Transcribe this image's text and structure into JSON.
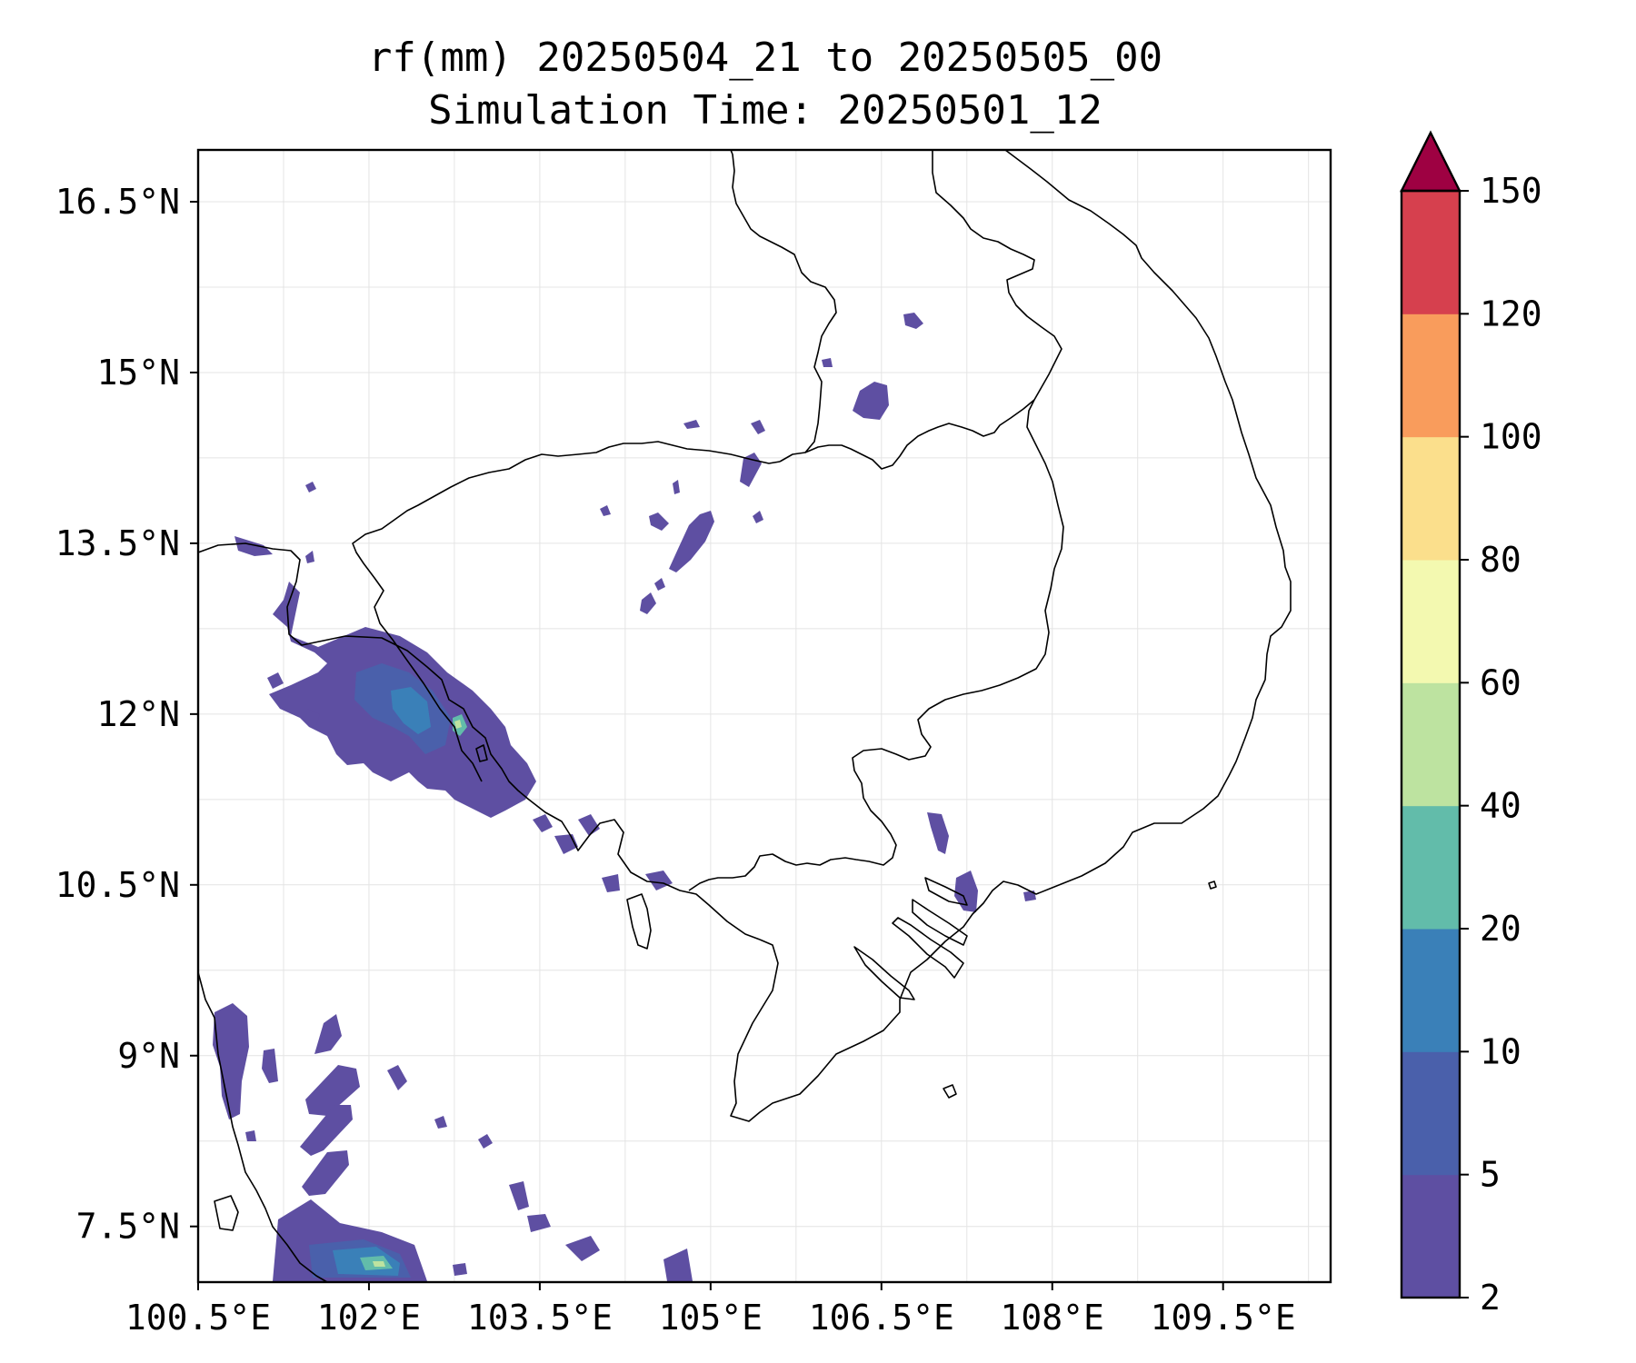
{
  "title": {
    "line1": "rf(mm) 20250504_21 to 20250505_00",
    "line2": "Simulation Time: 20250501_12"
  },
  "axes": {
    "x_ticks": [
      {
        "value": 100.5,
        "label": "100.5°E"
      },
      {
        "value": 102.0,
        "label": "102°E"
      },
      {
        "value": 103.5,
        "label": "103.5°E"
      },
      {
        "value": 105.0,
        "label": "105°E"
      },
      {
        "value": 106.5,
        "label": "106.5°E"
      },
      {
        "value": 108.0,
        "label": "108°E"
      },
      {
        "value": 109.5,
        "label": "109.5°E"
      }
    ],
    "y_ticks": [
      {
        "value": 16.5,
        "label": "16.5°N"
      },
      {
        "value": 15.0,
        "label": "15°N"
      },
      {
        "value": 13.5,
        "label": "13.5°N"
      },
      {
        "value": 12.0,
        "label": "12°N"
      },
      {
        "value": 10.5,
        "label": "10.5°N"
      },
      {
        "value": 9.0,
        "label": "9°N"
      },
      {
        "value": 7.5,
        "label": "7.5°N"
      }
    ],
    "lon_range": [
      100.5,
      110.4
    ],
    "lat_range": [
      7.0,
      17.0
    ],
    "grid": true
  },
  "colorbar": {
    "levels": [
      "2",
      "5",
      "10",
      "20",
      "40",
      "60",
      "80",
      "100",
      "120",
      "150"
    ],
    "colors": [
      "#5e4fa2",
      "#4a60ab",
      "#3a80b8",
      "#62bcaa",
      "#bde3a0",
      "#f3f9b0",
      "#fbdf8c",
      "#f99c5c",
      "#d6404e",
      "#9e0142"
    ],
    "extend": "max"
  }
}
